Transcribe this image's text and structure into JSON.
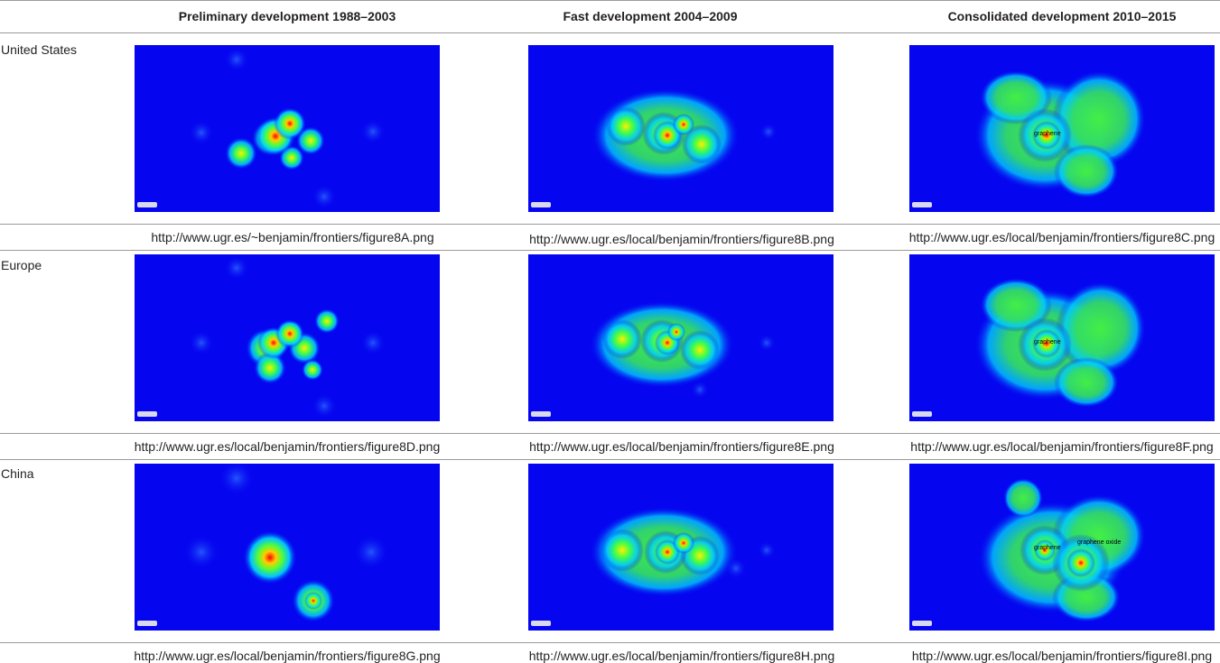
{
  "columns": [
    "Preliminary development 1988–2003",
    "Fast development 2004–2009",
    "Consolidated development 2010–2015"
  ],
  "rows": [
    {
      "label": "United States",
      "urls": [
        "http://www.ugr.es/~benjamin/frontiers/figure8A.png",
        "http://www.ugr.es/local/benjamin/frontiers/figure8B.png",
        "http://www.ugr.es/local/benjamin/frontiers/figure8C.png"
      ]
    },
    {
      "label": "Europe",
      "urls": [
        "http://www.ugr.es/local/benjamin/frontiers/figure8D.png",
        "http://www.ugr.es/local/benjamin/frontiers/figure8E.png",
        "http://www.ugr.es/local/benjamin/frontiers/figure8F.png"
      ]
    },
    {
      "label": "China",
      "urls": [
        "http://www.ugr.es/local/benjamin/frontiers/figure8G.png",
        "http://www.ugr.es/local/benjamin/frontiers/figure8H.png",
        "http://www.ugr.es/local/benjamin/frontiers/figure8I.png"
      ]
    }
  ],
  "map_keyword": "graphene",
  "map_keyword_2": "graphene oxide",
  "colors": {
    "background": "#0505f0",
    "low": "#00e0ff",
    "mid": "#3cff3c",
    "high": "#ffff00",
    "peak": "#ff0000"
  }
}
